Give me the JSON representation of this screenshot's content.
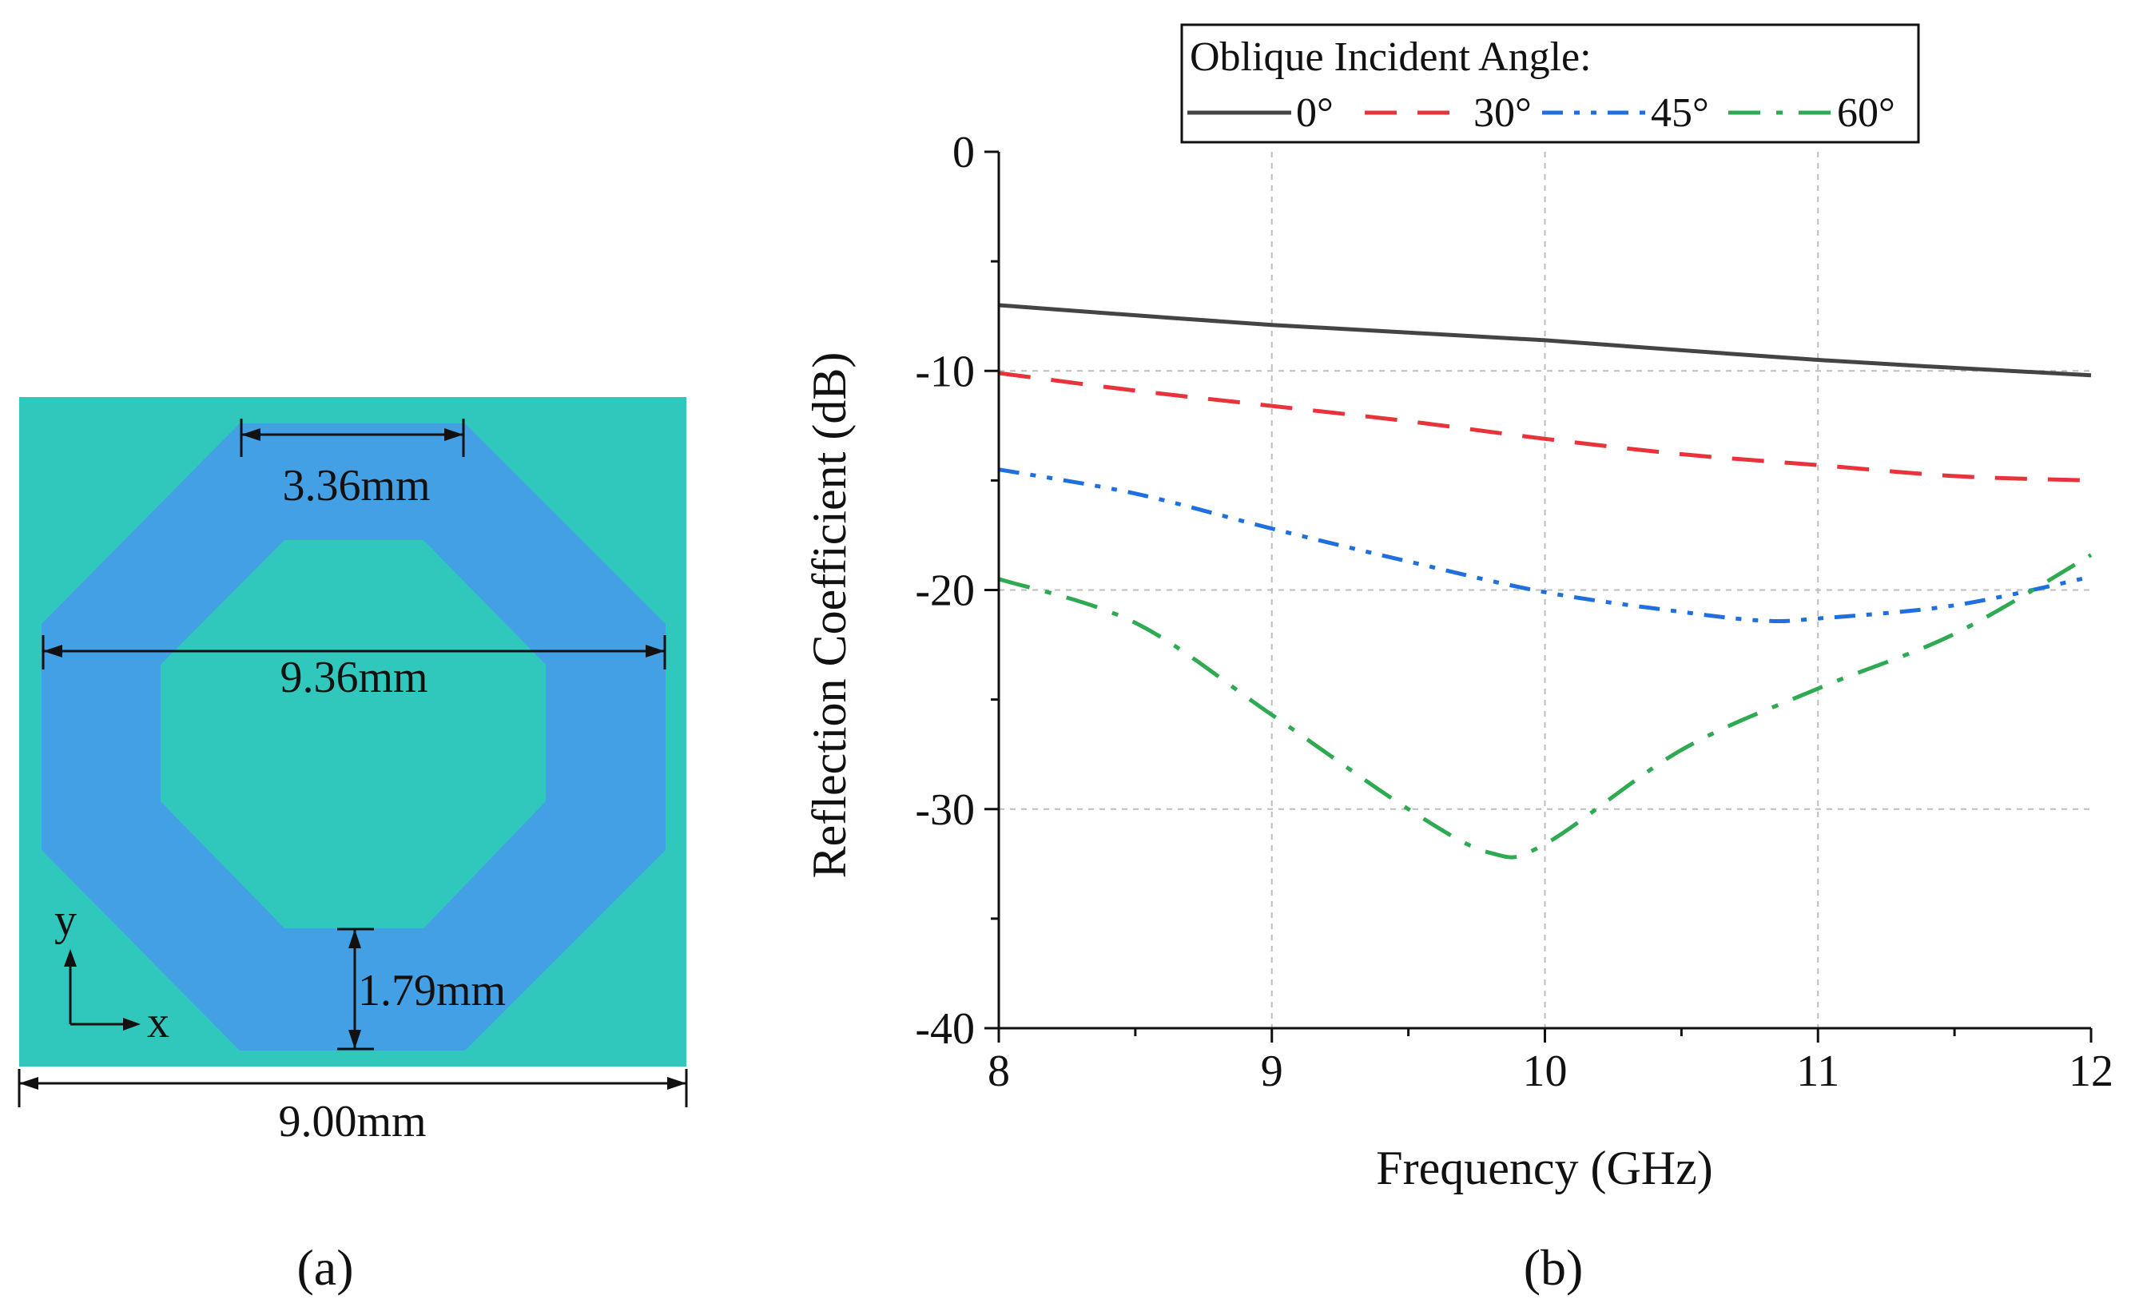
{
  "panel_a": {
    "label": "(a)",
    "dimensions": {
      "top_width": "3.36mm",
      "outer_span": "9.36mm",
      "ring_width": "1.79mm",
      "cell_width": "9.00mm"
    },
    "axes": {
      "y": "y",
      "x": "x"
    },
    "colors": {
      "substrate": "#30c8bc",
      "ring": "#44a0e4",
      "dimension_line": "#111111"
    }
  },
  "panel_b": {
    "label": "(b)"
  },
  "chart_data": {
    "type": "line",
    "title": "",
    "xlabel": "Frequency (GHz)",
    "ylabel": "Reflection Coefficient (dB)",
    "xlim": [
      8,
      12
    ],
    "ylim": [
      -40,
      0
    ],
    "xticks": [
      8,
      9,
      10,
      11,
      12
    ],
    "yticks": [
      0,
      -10,
      -20,
      -30,
      -40
    ],
    "grid": true,
    "legend": {
      "title": "Oblique Incident Angle:",
      "placement": "top"
    },
    "series": [
      {
        "name": "0°",
        "color": "#444444",
        "style": "solid",
        "points": [
          [
            8,
            -7.0
          ],
          [
            9,
            -7.9
          ],
          [
            10,
            -8.6
          ],
          [
            11,
            -9.5
          ],
          [
            12,
            -10.2
          ]
        ]
      },
      {
        "name": "30°",
        "color": "#e8333b",
        "style": "dash",
        "points": [
          [
            8,
            -10.1
          ],
          [
            8.5,
            -10.9
          ],
          [
            9,
            -11.6
          ],
          [
            9.5,
            -12.3
          ],
          [
            10,
            -13.1
          ],
          [
            10.5,
            -13.8
          ],
          [
            11,
            -14.3
          ],
          [
            11.5,
            -14.8
          ],
          [
            12,
            -15.0
          ]
        ]
      },
      {
        "name": "45°",
        "color": "#1f6fe0",
        "style": "dashdotdot",
        "points": [
          [
            8,
            -14.5
          ],
          [
            8.5,
            -15.6
          ],
          [
            9,
            -17.2
          ],
          [
            9.5,
            -18.7
          ],
          [
            10,
            -20.1
          ],
          [
            10.5,
            -21.0
          ],
          [
            10.8,
            -21.4
          ],
          [
            11,
            -21.3
          ],
          [
            11.5,
            -20.7
          ],
          [
            12,
            -19.4
          ]
        ]
      },
      {
        "name": "60°",
        "color": "#2eaa52",
        "style": "dashdot",
        "points": [
          [
            8,
            -19.5
          ],
          [
            8.5,
            -21.5
          ],
          [
            9,
            -25.7
          ],
          [
            9.5,
            -30.0
          ],
          [
            9.8,
            -32.0
          ],
          [
            10,
            -31.6
          ],
          [
            10.5,
            -27.3
          ],
          [
            11,
            -24.5
          ],
          [
            11.5,
            -22.0
          ],
          [
            12,
            -18.4
          ]
        ]
      }
    ]
  }
}
